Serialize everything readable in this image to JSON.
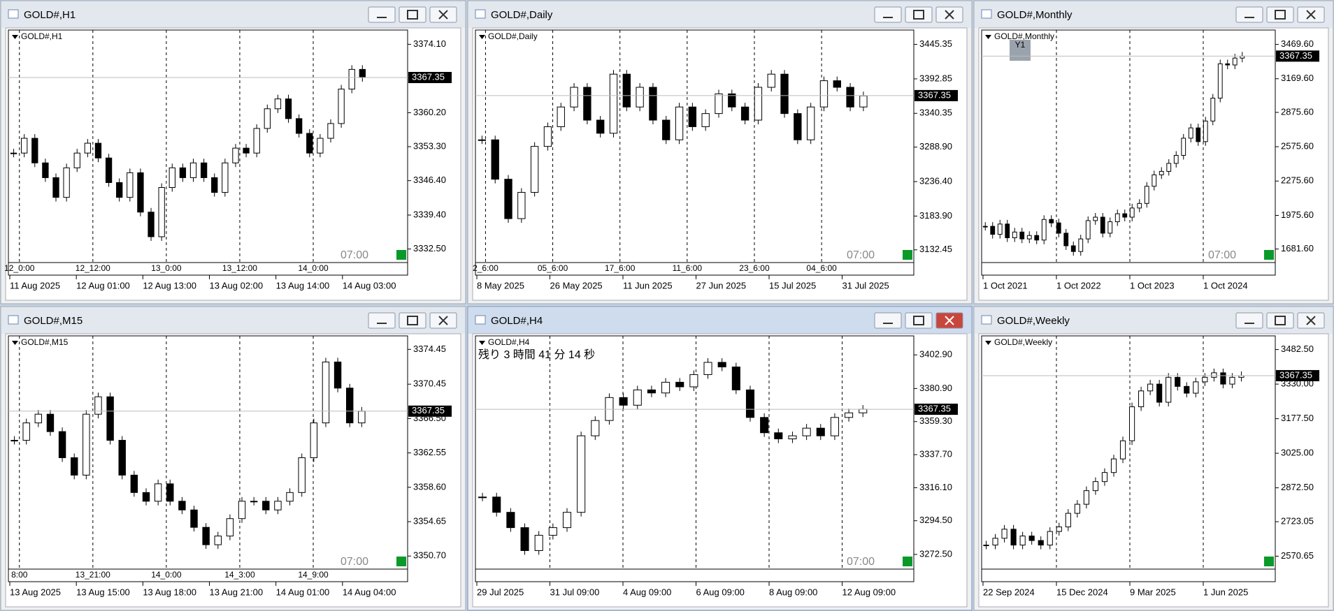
{
  "windows": [
    {
      "title": "GOLD#,H1",
      "label": "GOLD#,H1",
      "session_label": "07:00",
      "ylim": [
        3329.75,
        3377.0
      ],
      "yticks": [
        {
          "value": 3374.1,
          "label": "3374.10"
        },
        {
          "value": 3360.2,
          "label": "3360.20"
        },
        {
          "value": 3353.3,
          "label": "3353.30"
        },
        {
          "value": 3346.4,
          "label": "3346.40"
        },
        {
          "value": 3339.4,
          "label": "3339.40"
        },
        {
          "value": 3332.5,
          "label": "3332.50"
        }
      ],
      "current_price": {
        "value": 3367.35,
        "label": "3367.35"
      },
      "period_labels": [
        "12_0:00",
        "12_12:00",
        "13_0:00",
        "13_12:00",
        "14_0:00"
      ],
      "date_labels": [
        "11 Aug 2025",
        "12 Aug 01:00",
        "12 Aug 13:00",
        "13 Aug 02:00",
        "13 Aug 14:00",
        "14 Aug 03:00"
      ],
      "closes": [
        3352,
        3355,
        3350,
        3347,
        3343,
        3349,
        3352,
        3354,
        3351,
        3346,
        3343,
        3348,
        3340,
        3335,
        3345,
        3349,
        3347,
        3350,
        3347,
        3344,
        3350,
        3353,
        3352,
        3357,
        3361,
        3363,
        3359,
        3356,
        3352,
        3355,
        3358,
        3365,
        3369,
        3367.35
      ]
    },
    {
      "title": "GOLD#,Daily",
      "label": "GOLD#,Daily",
      "session_label": "07:00",
      "ylim": [
        3113.1,
        3467.2
      ],
      "yticks": [
        {
          "value": 3445.35,
          "label": "3445.35"
        },
        {
          "value": 3392.85,
          "label": "3392.85"
        },
        {
          "value": 3340.35,
          "label": "3340.35"
        },
        {
          "value": 3288.9,
          "label": "3288.90"
        },
        {
          "value": 3236.4,
          "label": "3236.40"
        },
        {
          "value": 3183.9,
          "label": "3183.90"
        },
        {
          "value": 3132.45,
          "label": "3132.45"
        }
      ],
      "current_price": {
        "value": 3367.35,
        "label": "3367.35"
      },
      "period_labels": [
        "2_6:00",
        "05_6:00",
        "17_6:00",
        "11_6:00",
        "23_6:00",
        "04_6:00"
      ],
      "date_labels": [
        "8 May 2025",
        "26 May 2025",
        "11 Jun 2025",
        "27 Jun 2025",
        "15 Jul 2025",
        "31 Jul 2025"
      ],
      "closes": [
        3300,
        3240,
        3180,
        3220,
        3290,
        3320,
        3350,
        3380,
        3330,
        3310,
        3400,
        3350,
        3380,
        3330,
        3300,
        3350,
        3320,
        3340,
        3370,
        3350,
        3330,
        3380,
        3400,
        3340,
        3300,
        3350,
        3390,
        3380,
        3350,
        3367
      ]
    },
    {
      "title": "GOLD#,Monthly",
      "label": "GOLD#,Monthly",
      "badge": "Y1",
      "session_label": "07:00",
      "ylim": [
        1563.4,
        3595.2
      ],
      "yticks": [
        {
          "value": 3469.6,
          "label": "3469.60"
        },
        {
          "value": 3169.6,
          "label": "3169.60"
        },
        {
          "value": 2875.6,
          "label": "2875.60"
        },
        {
          "value": 2575.6,
          "label": "2575.60"
        },
        {
          "value": 2275.6,
          "label": "2275.60"
        },
        {
          "value": 1975.6,
          "label": "1975.60"
        },
        {
          "value": 1681.6,
          "label": "1681.60"
        }
      ],
      "current_price": {
        "value": 3367.35,
        "label": "3367.35"
      },
      "period_labels": [],
      "date_labels": [
        "1 Oct 2021",
        "1 Oct 2022",
        "1 Oct 2023",
        "1 Oct 2024"
      ],
      "closes": [
        1880,
        1810,
        1900,
        1780,
        1830,
        1770,
        1800,
        1760,
        1940,
        1910,
        1820,
        1710,
        1660,
        1770,
        1930,
        1960,
        1820,
        1920,
        1990,
        1960,
        2040,
        2080,
        2230,
        2330,
        2360,
        2430,
        2500,
        2650,
        2740,
        2620,
        2800,
        3000,
        3300,
        3290,
        3350,
        3367
      ]
    },
    {
      "title": "GOLD#,M15",
      "label": "GOLD#,M15",
      "session_label": "07:00",
      "ylim": [
        3349.2,
        3376.0
      ],
      "yticks": [
        {
          "value": 3374.45,
          "label": "3374.45"
        },
        {
          "value": 3370.45,
          "label": "3370.45"
        },
        {
          "value": 3366.5,
          "label": "3366.50"
        },
        {
          "value": 3362.55,
          "label": "3362.55"
        },
        {
          "value": 3358.6,
          "label": "3358.60"
        },
        {
          "value": 3354.65,
          "label": "3354.65"
        },
        {
          "value": 3350.7,
          "label": "3350.70"
        }
      ],
      "current_price": {
        "value": 3367.35,
        "label": "3367.35"
      },
      "period_labels": [
        "8:00",
        "13_21:00",
        "14_0:00",
        "14_3:00",
        "14_9:00"
      ],
      "date_labels": [
        "13 Aug 2025",
        "13 Aug 15:00",
        "13 Aug 18:00",
        "13 Aug 21:00",
        "14 Aug 01:00",
        "14 Aug 04:00"
      ],
      "closes": [
        3364,
        3366,
        3367,
        3365,
        3362,
        3360,
        3367,
        3369,
        3364,
        3360,
        3358,
        3357,
        3359,
        3357,
        3356,
        3354,
        3352,
        3353,
        3355,
        3357,
        3357,
        3356,
        3357,
        3358,
        3362,
        3366,
        3373,
        3370,
        3366,
        3367.35
      ]
    },
    {
      "title": "GOLD#,H4",
      "label": "GOLD#,H4",
      "countdown": "残り 3 時間 41 分 14 秒",
      "session_label": "07:00",
      "ylim": [
        3262.9,
        3415.3
      ],
      "yticks": [
        {
          "value": 3402.9,
          "label": "3402.90"
        },
        {
          "value": 3380.9,
          "label": "3380.90"
        },
        {
          "value": 3359.3,
          "label": "3359.30"
        },
        {
          "value": 3337.7,
          "label": "3337.70"
        },
        {
          "value": 3316.1,
          "label": "3316.10"
        },
        {
          "value": 3294.5,
          "label": "3294.50"
        },
        {
          "value": 3272.5,
          "label": "3272.50"
        }
      ],
      "current_price": {
        "value": 3367.35,
        "label": "3367.35"
      },
      "period_labels": [],
      "date_labels": [
        "29 Jul 2025",
        "31 Jul 09:00",
        "4 Aug 09:00",
        "6 Aug 09:00",
        "8 Aug 09:00",
        "12 Aug 09:00"
      ],
      "closes": [
        3310,
        3300,
        3290,
        3275,
        3285,
        3290,
        3300,
        3350,
        3360,
        3375,
        3370,
        3380,
        3378,
        3385,
        3382,
        3390,
        3398,
        3395,
        3380,
        3362,
        3352,
        3348,
        3350,
        3355,
        3350,
        3362,
        3365,
        3367.35
      ]
    },
    {
      "title": "GOLD#,Weekly",
      "label": "GOLD#,Weekly",
      "ylim": [
        2513.9,
        3542.8
      ],
      "yticks": [
        {
          "value": 3482.5,
          "label": "3482.50"
        },
        {
          "value": 3330.0,
          "label": "3330.00"
        },
        {
          "value": 3177.5,
          "label": "3177.50"
        },
        {
          "value": 3025.0,
          "label": "3025.00"
        },
        {
          "value": 2872.5,
          "label": "2872.50"
        },
        {
          "value": 2723.05,
          "label": "2723.05"
        },
        {
          "value": 2570.65,
          "label": "2570.65"
        }
      ],
      "current_price": {
        "value": 3367.35,
        "label": "3367.35"
      },
      "period_labels": [],
      "date_labels": [
        "22 Sep 2024",
        "15 Dec 2024",
        "9 Mar 2025",
        "1 Jun 2025"
      ],
      "closes": [
        2620,
        2650,
        2690,
        2620,
        2660,
        2640,
        2620,
        2680,
        2700,
        2760,
        2800,
        2860,
        2900,
        2940,
        3000,
        3080,
        3230,
        3300,
        3330,
        3250,
        3360,
        3320,
        3290,
        3340,
        3360,
        3380,
        3330,
        3360,
        3367.35
      ]
    }
  ]
}
